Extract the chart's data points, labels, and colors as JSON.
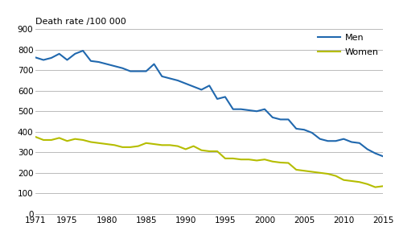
{
  "years_men": [
    1971,
    1972,
    1973,
    1974,
    1975,
    1976,
    1977,
    1978,
    1979,
    1980,
    1981,
    1982,
    1983,
    1984,
    1985,
    1986,
    1987,
    1988,
    1989,
    1990,
    1991,
    1992,
    1993,
    1994,
    1995,
    1996,
    1997,
    1998,
    1999,
    2000,
    2001,
    2002,
    2003,
    2004,
    2005,
    2006,
    2007,
    2008,
    2009,
    2010,
    2011,
    2012,
    2013,
    2014,
    2015
  ],
  "men": [
    762,
    750,
    760,
    780,
    750,
    780,
    795,
    745,
    740,
    730,
    720,
    710,
    695,
    695,
    695,
    730,
    670,
    660,
    650,
    635,
    620,
    605,
    625,
    560,
    570,
    510,
    510,
    505,
    500,
    510,
    470,
    460,
    460,
    415,
    410,
    395,
    365,
    355,
    355,
    365,
    350,
    345,
    315,
    295,
    280
  ],
  "years_women": [
    1971,
    1972,
    1973,
    1974,
    1975,
    1976,
    1977,
    1978,
    1979,
    1980,
    1981,
    1982,
    1983,
    1984,
    1985,
    1986,
    1987,
    1988,
    1989,
    1990,
    1991,
    1992,
    1993,
    1994,
    1995,
    1996,
    1997,
    1998,
    1999,
    2000,
    2001,
    2002,
    2003,
    2004,
    2005,
    2006,
    2007,
    2008,
    2009,
    2010,
    2011,
    2012,
    2013,
    2014,
    2015
  ],
  "women": [
    375,
    360,
    360,
    370,
    355,
    365,
    360,
    350,
    345,
    340,
    335,
    325,
    325,
    330,
    345,
    340,
    335,
    335,
    330,
    315,
    330,
    310,
    305,
    305,
    270,
    270,
    265,
    265,
    260,
    265,
    255,
    250,
    248,
    215,
    210,
    205,
    200,
    195,
    185,
    165,
    160,
    155,
    145,
    130,
    135
  ],
  "men_color": "#2068ae",
  "women_color": "#b5bd00",
  "xlim": [
    1971,
    2015
  ],
  "ylim": [
    0,
    900
  ],
  "yticks": [
    0,
    100,
    200,
    300,
    400,
    500,
    600,
    700,
    800,
    900
  ],
  "xticks": [
    1971,
    1975,
    1980,
    1985,
    1990,
    1995,
    2000,
    2005,
    2010,
    2015
  ],
  "ylabel": "Death rate /100 000",
  "legend_men": "Men",
  "legend_women": "Women",
  "line_width": 1.5,
  "grid_color": "#b0b0b0",
  "grid_linewidth": 0.6,
  "tick_fontsize": 7.5,
  "ylabel_fontsize": 8
}
